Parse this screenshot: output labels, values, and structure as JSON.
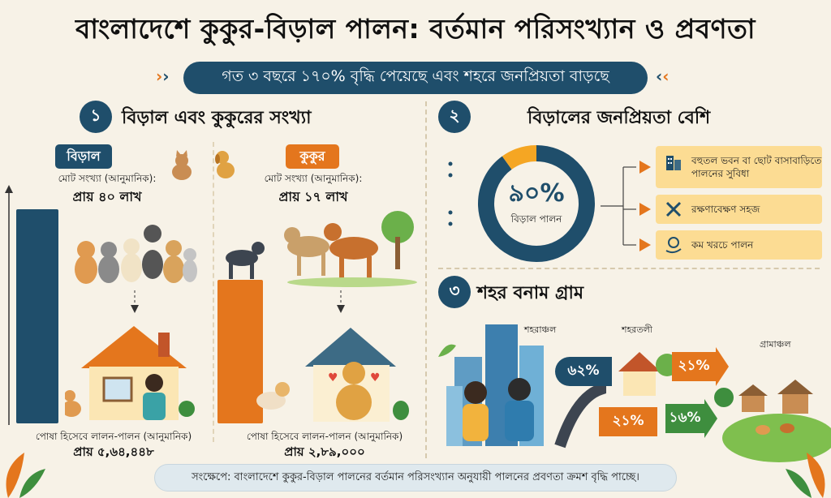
{
  "title": "বাংলাদেশে কুকুর-বিড়াল পালন: বর্তমান পরিসংখ্যান ও প্রবণতা",
  "subtitle": "গত ৩ বছরে ১৭০% বৃদ্ধি পেয়েছে এবং শহরে জনপ্রিয়তা বাড়ছে",
  "section1": {
    "number": "১",
    "heading": "বিড়াল এবং কুকুরের সংখ্যা",
    "cat": {
      "tag": "বিড়াল",
      "total_label": "মোট সংখ্যা (আনুমানিক):",
      "total_value": "প্রায় ৪০ লাখ",
      "pet_label": "পোষা হিসেবে লালন-পালন (আনুমানিক)",
      "pet_value": "প্রায় ৫,৬৪,৪৪৮"
    },
    "dog": {
      "tag": "কুকুর",
      "total_label": "মোট সংখ্যা (আনুমানিক):",
      "total_value": "প্রায় ১৭ লাখ",
      "pet_label": "পোষা হিসেবে লালন-পালন (আনুমানিক)",
      "pet_value": "প্রায় ২,৮৯,০০০"
    }
  },
  "section2": {
    "number": "২",
    "heading": "বিড়ালের জনপ্রিয়তা বেশি",
    "donut_value": "৯০%",
    "donut_fraction": 0.9,
    "donut_label": "বিড়াল পালন",
    "benefits": [
      {
        "text": "বহুতল ভবন বা ছোট বাসাবাড়িতে পালনের সুবিধা",
        "icon": "building-icon"
      },
      {
        "text": "রক্ষণাবেক্ষণ সহজ",
        "icon": "tools-icon"
      },
      {
        "text": "কম খরচে পালন",
        "icon": "coin-hand-icon"
      }
    ]
  },
  "section3": {
    "number": "৩",
    "heading": "শহর বনাম গ্রাম",
    "labels": {
      "city": "শহরাঞ্চল",
      "suburb": "শহরতলী",
      "village": "গ্রামাঞ্চল"
    },
    "values": {
      "city": "৬২%",
      "suburb": "২১%",
      "top_arrow": "২১%",
      "bottom_arrow": "১৬%"
    }
  },
  "footer": "সংক্ষেপে: বাংলাদেশে কুকুর-বিড়াল পালনের বর্তমান পরিসংখ্যান অনুযায়ী পালনের প্রবণতা ক্রমশ বৃদ্ধি পাচ্ছে।",
  "colors": {
    "navy": "#1f4e6b",
    "orange": "#e4761d",
    "yellow": "#f5a623",
    "green": "#3e8e3e"
  }
}
